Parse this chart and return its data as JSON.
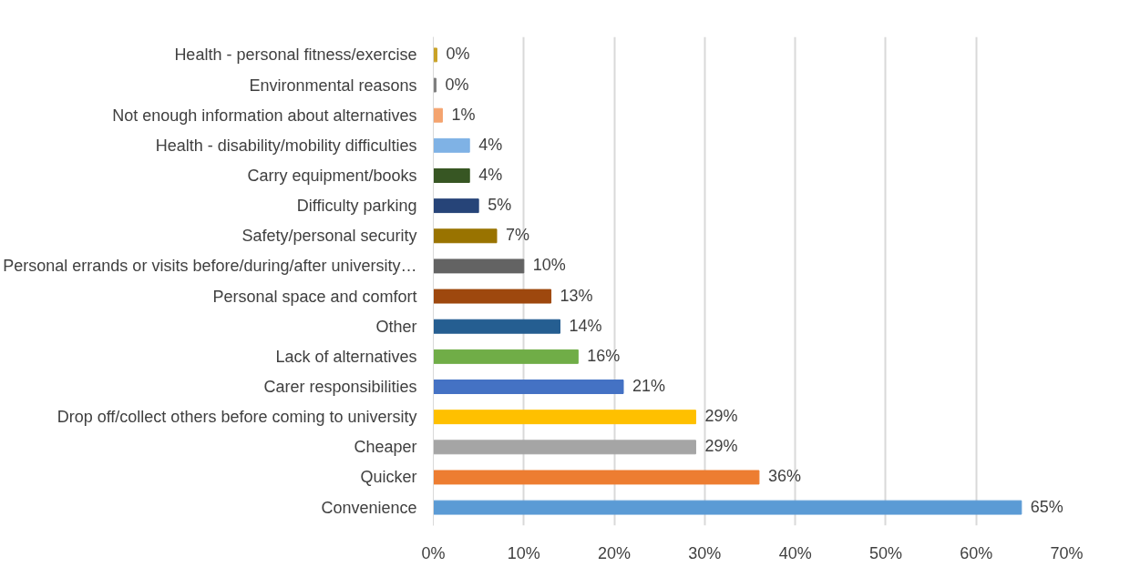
{
  "chart_data": {
    "type": "bar",
    "orientation": "horizontal",
    "categories": [
      "Health - personal fitness/exercise",
      "Environmental reasons",
      "Not enough information about alternatives",
      "Health - disability/mobility difficulties",
      "Carry equipment/books",
      "Difficulty parking",
      "Safety/personal security",
      "Personal errands or visits before/during/after university…",
      "Personal space and comfort",
      "Other",
      "Lack of alternatives",
      "Carer responsibilities",
      "Drop off/collect others before coming to university",
      "Cheaper",
      "Quicker",
      "Convenience"
    ],
    "values": [
      0.4,
      0.3,
      1,
      4,
      4,
      5,
      7,
      10,
      13,
      14,
      16,
      21,
      29,
      29,
      36,
      65
    ],
    "value_labels": [
      "0%",
      "0%",
      "1%",
      "4%",
      "4%",
      "5%",
      "7%",
      "10%",
      "13%",
      "14%",
      "16%",
      "21%",
      "29%",
      "29%",
      "36%",
      "65%"
    ],
    "colors": [
      "#c9a227",
      "#7f7f7f",
      "#f4a46f",
      "#7fb2e5",
      "#375623",
      "#264478",
      "#997300",
      "#636363",
      "#9e480e",
      "#255e91",
      "#70ad47",
      "#4472c4",
      "#ffc000",
      "#a5a5a5",
      "#ed7d31",
      "#5b9bd5"
    ],
    "xlim": [
      0,
      70
    ],
    "xticks": [
      {
        "value": 0,
        "label": "0%"
      },
      {
        "value": 10,
        "label": "10%"
      },
      {
        "value": 20,
        "label": "20%"
      },
      {
        "value": 30,
        "label": "30%"
      },
      {
        "value": 40,
        "label": "40%"
      },
      {
        "value": 50,
        "label": "50%"
      },
      {
        "value": 60,
        "label": "60%"
      },
      {
        "value": 70,
        "label": "70%"
      }
    ],
    "grid": "x"
  }
}
